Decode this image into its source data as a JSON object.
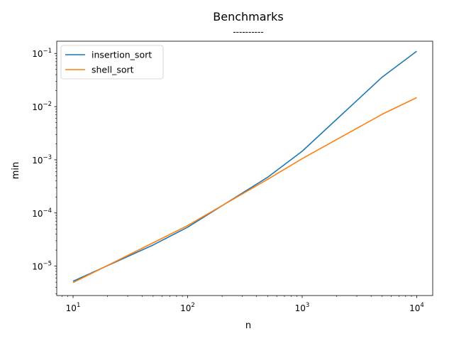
{
  "chart_data": {
    "type": "line",
    "title": "Benchmarks",
    "subtitle": "----------",
    "xlabel": "n",
    "ylabel": "min",
    "xscale": "log",
    "yscale": "log",
    "xlim": [
      7.2,
      13800
    ],
    "ylim": [
      2.8e-06,
      0.17
    ],
    "x_ticks": [
      {
        "value": 10,
        "base": "10",
        "exp": "1"
      },
      {
        "value": 100,
        "base": "10",
        "exp": "2"
      },
      {
        "value": 1000,
        "base": "10",
        "exp": "3"
      },
      {
        "value": 10000,
        "base": "10",
        "exp": "4"
      }
    ],
    "y_ticks": [
      {
        "value": 1e-05,
        "base": "10",
        "exp": "−5"
      },
      {
        "value": 0.0001,
        "base": "10",
        "exp": "−4"
      },
      {
        "value": 0.001,
        "base": "10",
        "exp": "−3"
      },
      {
        "value": 0.01,
        "base": "10",
        "exp": "−2"
      },
      {
        "value": 0.1,
        "base": "10",
        "exp": "−1"
      }
    ],
    "grid": false,
    "legend_position": "top-left",
    "series": [
      {
        "name": "insertion_sort",
        "color": "#1f77b4",
        "x": [
          10,
          50,
          100,
          500,
          1000,
          5000,
          10000
        ],
        "y": [
          5.2e-06,
          2.5e-05,
          5.4e-05,
          0.00047,
          0.00145,
          0.036,
          0.11
        ]
      },
      {
        "name": "shell_sort",
        "color": "#ff7f0e",
        "x": [
          10,
          50,
          100,
          500,
          1000,
          5000,
          10000
        ],
        "y": [
          4.9e-06,
          2.75e-05,
          5.8e-05,
          0.00043,
          0.00105,
          0.0072,
          0.0148
        ]
      }
    ]
  }
}
